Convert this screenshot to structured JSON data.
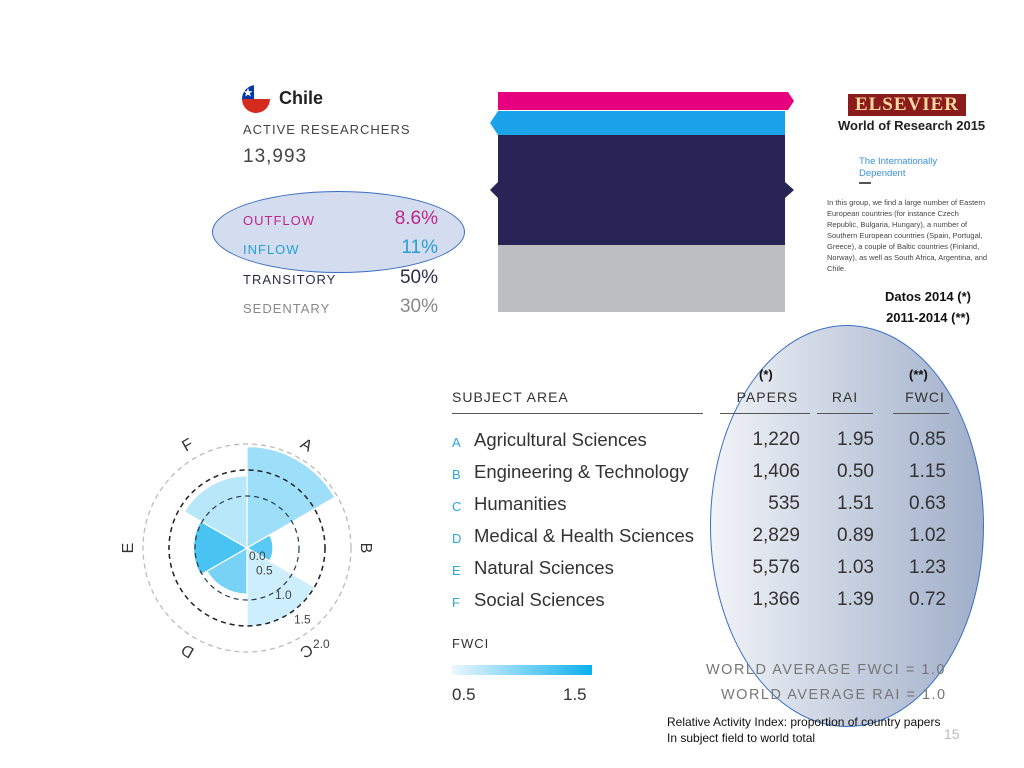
{
  "country": {
    "name": "Chile",
    "active_researchers_label": "ACTIVE RESEARCHERS",
    "active_researchers_value": "13,993",
    "flows": [
      {
        "label": "OUTFLOW",
        "value": "8.6%",
        "color": "#c0278a"
      },
      {
        "label": "INFLOW",
        "value": "11%",
        "color": "#2a9fd6"
      },
      {
        "label": "TRANSITORY",
        "value": "50%",
        "color": "#2c2c4a"
      },
      {
        "label": "SEDENTARY",
        "value": "30%",
        "color": "#888888"
      }
    ]
  },
  "mobility_bars": {
    "colors": [
      "#e6007e",
      "#1aa3e8",
      "#282456",
      "#bcbec0"
    ],
    "shares": [
      8.6,
      11,
      50,
      30
    ]
  },
  "source": {
    "logo_text": "ELSEVIER",
    "title": "World of Research 2015",
    "subtitle_line1": "The Internationally",
    "subtitle_line2": "Dependent",
    "paragraph": "In this group, we find a large number of Eastern European countries (for instance Czech Republic, Bulgaria, Hungary), a number of Southern European countries (Spain, Portugal, Greece), a couple of Baltic countries (Finland, Norway), as well as South Africa, Argentina, and Chile."
  },
  "notes": {
    "datos_line1": "Datos 2014 (*)",
    "datos_line2": "2011-2014 (**)",
    "mark_papers": "(*)",
    "mark_fwci": "(**)",
    "world_avg_fwci": "WORLD AVERAGE FWCI = 1.0",
    "world_avg_rai": "WORLD AVERAGE RAI = 1.0",
    "rai_note_line1": "Relative Activity Index: proportion of country papers",
    "rai_note_line2": "In subject field to world total",
    "page_number": "15"
  },
  "table": {
    "subject_header": "SUBJECT AREA",
    "papers_header": "PAPERS",
    "rai_header": "RAI",
    "fwci_header": "FWCI",
    "rows": [
      {
        "letter": "A",
        "subject": "Agricultural Sciences",
        "papers": "1,220",
        "rai": "1.95",
        "fwci": "0.85"
      },
      {
        "letter": "B",
        "subject": "Engineering & Technology",
        "papers": "1,406",
        "rai": "0.50",
        "fwci": "1.15"
      },
      {
        "letter": "C",
        "subject": "Humanities",
        "papers": "535",
        "rai": "1.51",
        "fwci": "0.63"
      },
      {
        "letter": "D",
        "subject": "Medical & Health Sciences",
        "papers": "2,829",
        "rai": "0.89",
        "fwci": "1.02"
      },
      {
        "letter": "E",
        "subject": "Natural Sciences",
        "papers": "5,576",
        "rai": "1.03",
        "fwci": "1.23"
      },
      {
        "letter": "F",
        "subject": "Social Sciences",
        "papers": "1,366",
        "rai": "1.39",
        "fwci": "0.72"
      }
    ]
  },
  "legend": {
    "title": "FWCI",
    "min_label": "0.5",
    "max_label": "1.5",
    "min_color": "#eaf7fe",
    "max_color": "#0db0ee"
  },
  "chart_data": {
    "type": "polar-area",
    "categories": [
      "A",
      "B",
      "C",
      "D",
      "E",
      "F"
    ],
    "papers": [
      1220,
      1406,
      535,
      2829,
      5576,
      1366
    ],
    "rai": [
      1.95,
      0.5,
      1.51,
      0.89,
      1.03,
      1.39
    ],
    "fwci": [
      0.85,
      1.15,
      0.63,
      1.02,
      1.23,
      0.72
    ],
    "radial_ticks": [
      "0.0",
      "0.5",
      "1.0",
      "1.5",
      "2.0"
    ],
    "radial_range": [
      0,
      2
    ],
    "reference_ring": 1.0
  }
}
